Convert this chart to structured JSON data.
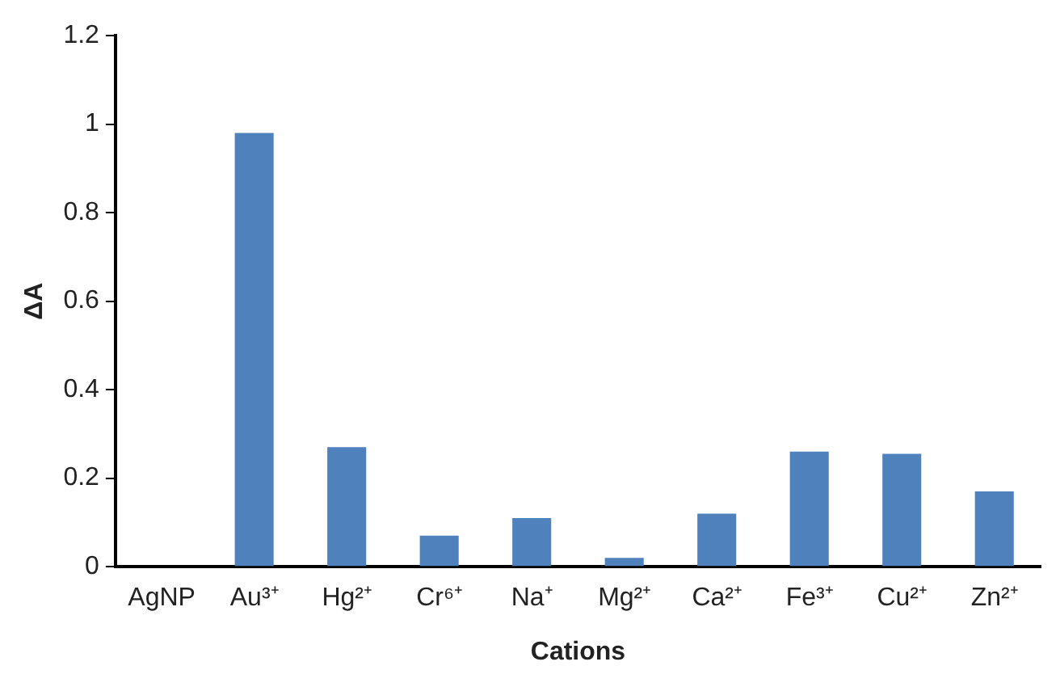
{
  "chart_data": {
    "type": "bar",
    "xlabel": "Cations",
    "ylabel": "ΔA",
    "categories": [
      "AgNP",
      "Au³⁺",
      "Hg²⁺",
      "Cr⁶⁺",
      "Na⁺",
      "Mg²⁺",
      "Ca²⁺",
      "Fe³⁺",
      "Cu²⁺",
      "Zn²⁺"
    ],
    "values": [
      0,
      0.98,
      0.27,
      0.07,
      0.11,
      0.02,
      0.12,
      0.26,
      0.255,
      0.17
    ],
    "color": "#4f81bd",
    "ylim": [
      0,
      1.2
    ],
    "yticks": [
      0,
      0.2,
      0.4,
      0.6,
      0.8,
      1,
      1.2
    ],
    "grid": false,
    "legend": false
  }
}
